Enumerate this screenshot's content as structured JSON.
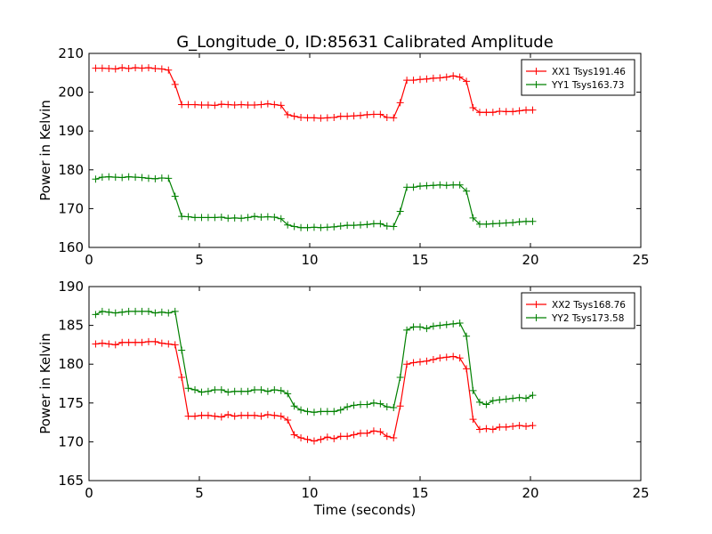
{
  "title": "G_Longitude_0, ID:85631 Calibrated Amplitude",
  "colors": {
    "red": "#ff0000",
    "green": "#008000"
  },
  "chart_data": [
    {
      "type": "line",
      "title": "G_Longitude_0, ID:85631 Calibrated Amplitude",
      "xlabel": "",
      "ylabel": "Power in Kelvin",
      "xlim": [
        0,
        25
      ],
      "ylim": [
        160,
        210
      ],
      "xticks": [
        "0",
        "5",
        "10",
        "15",
        "20",
        "25"
      ],
      "yticks": [
        "160",
        "170",
        "180",
        "190",
        "200",
        "210"
      ],
      "grid": false,
      "legend": "top-right",
      "marker": "+",
      "x": [
        0.3,
        0.6,
        0.9,
        1.2,
        1.5,
        1.8,
        2.1,
        2.4,
        2.7,
        3.0,
        3.3,
        3.6,
        3.9,
        4.2,
        4.5,
        4.8,
        5.1,
        5.4,
        5.7,
        6.0,
        6.3,
        6.6,
        6.9,
        7.2,
        7.5,
        7.8,
        8.1,
        8.4,
        8.7,
        9.0,
        9.3,
        9.6,
        9.9,
        10.2,
        10.5,
        10.8,
        11.1,
        11.4,
        11.7,
        12.0,
        12.3,
        12.6,
        12.9,
        13.2,
        13.5,
        13.8,
        14.1,
        14.4,
        14.7,
        15.0,
        15.3,
        15.6,
        15.9,
        16.2,
        16.5,
        16.8,
        17.1,
        17.4,
        17.7,
        18.0,
        18.3,
        18.6,
        18.9,
        19.2,
        19.5,
        19.8,
        20.1
      ],
      "series": [
        {
          "name": "XX1 Tsys191.46",
          "color": "#ff0000",
          "values": [
            206.2,
            206.2,
            206.1,
            206.0,
            206.3,
            206.1,
            206.3,
            206.2,
            206.3,
            206.1,
            206.0,
            205.7,
            202.0,
            196.8,
            196.8,
            196.8,
            196.7,
            196.7,
            196.6,
            196.9,
            196.8,
            196.7,
            196.8,
            196.7,
            196.7,
            196.8,
            197.0,
            196.8,
            196.6,
            194.2,
            193.8,
            193.5,
            193.4,
            193.4,
            193.3,
            193.4,
            193.5,
            193.8,
            193.8,
            193.9,
            194.0,
            194.2,
            194.3,
            194.3,
            193.5,
            193.4,
            197.3,
            203.1,
            203.1,
            203.3,
            203.4,
            203.6,
            203.7,
            203.9,
            204.2,
            203.9,
            202.8,
            196.0,
            194.8,
            194.8,
            194.8,
            195.1,
            195.0,
            195.0,
            195.2,
            195.4,
            195.4
          ]
        },
        {
          "name": "YY1 Tsys163.73",
          "color": "#008000",
          "values": [
            177.6,
            178.1,
            178.2,
            178.1,
            178.0,
            178.2,
            178.1,
            178.0,
            177.8,
            177.7,
            177.9,
            177.8,
            173.2,
            168.0,
            167.9,
            167.7,
            167.7,
            167.7,
            167.7,
            167.8,
            167.5,
            167.6,
            167.5,
            167.7,
            168.0,
            167.8,
            167.9,
            167.8,
            167.4,
            165.8,
            165.4,
            165.1,
            165.1,
            165.2,
            165.1,
            165.2,
            165.3,
            165.5,
            165.7,
            165.7,
            165.8,
            165.9,
            166.1,
            166.1,
            165.5,
            165.4,
            169.3,
            175.5,
            175.5,
            175.8,
            175.9,
            176.0,
            176.1,
            176.0,
            176.1,
            176.1,
            174.5,
            167.6,
            166.0,
            166.0,
            166.1,
            166.2,
            166.3,
            166.4,
            166.6,
            166.7,
            166.7
          ]
        }
      ]
    },
    {
      "type": "line",
      "title": "",
      "xlabel": "Time (seconds)",
      "ylabel": "Power in Kelvin",
      "xlim": [
        0,
        25
      ],
      "ylim": [
        165,
        190
      ],
      "xticks": [
        "0",
        "5",
        "10",
        "15",
        "20",
        "25"
      ],
      "yticks": [
        "165",
        "170",
        "175",
        "180",
        "185",
        "190"
      ],
      "grid": false,
      "legend": "top-right",
      "marker": "+",
      "x": [
        0.3,
        0.6,
        0.9,
        1.2,
        1.5,
        1.8,
        2.1,
        2.4,
        2.7,
        3.0,
        3.3,
        3.6,
        3.9,
        4.2,
        4.5,
        4.8,
        5.1,
        5.4,
        5.7,
        6.0,
        6.3,
        6.6,
        6.9,
        7.2,
        7.5,
        7.8,
        8.1,
        8.4,
        8.7,
        9.0,
        9.3,
        9.6,
        9.9,
        10.2,
        10.5,
        10.8,
        11.1,
        11.4,
        11.7,
        12.0,
        12.3,
        12.6,
        12.9,
        13.2,
        13.5,
        13.8,
        14.1,
        14.4,
        14.7,
        15.0,
        15.3,
        15.6,
        15.9,
        16.2,
        16.5,
        16.8,
        17.1,
        17.4,
        17.7,
        18.0,
        18.3,
        18.6,
        18.9,
        19.2,
        19.5,
        19.8,
        20.1
      ],
      "series": [
        {
          "name": "XX2 Tsys168.76",
          "color": "#ff0000",
          "values": [
            182.6,
            182.7,
            182.6,
            182.5,
            182.8,
            182.8,
            182.8,
            182.8,
            182.9,
            182.9,
            182.7,
            182.6,
            182.5,
            178.3,
            173.3,
            173.3,
            173.4,
            173.4,
            173.3,
            173.2,
            173.5,
            173.3,
            173.4,
            173.4,
            173.4,
            173.3,
            173.5,
            173.4,
            173.3,
            172.8,
            170.9,
            170.5,
            170.3,
            170.1,
            170.3,
            170.6,
            170.4,
            170.7,
            170.7,
            170.9,
            171.1,
            171.1,
            171.4,
            171.3,
            170.7,
            170.5,
            174.6,
            180.0,
            180.2,
            180.3,
            180.4,
            180.6,
            180.8,
            180.9,
            181.0,
            180.8,
            179.4,
            172.9,
            171.6,
            171.7,
            171.6,
            171.9,
            171.9,
            172.0,
            172.1,
            172.0,
            172.1
          ]
        },
        {
          "name": "YY2 Tsys173.58",
          "color": "#008000",
          "values": [
            186.4,
            186.8,
            186.7,
            186.6,
            186.7,
            186.8,
            186.8,
            186.8,
            186.8,
            186.6,
            186.7,
            186.6,
            186.8,
            181.8,
            176.9,
            176.7,
            176.4,
            176.5,
            176.7,
            176.7,
            176.4,
            176.5,
            176.5,
            176.5,
            176.7,
            176.7,
            176.5,
            176.7,
            176.6,
            176.2,
            174.6,
            174.1,
            173.9,
            173.8,
            173.9,
            173.9,
            173.9,
            174.1,
            174.5,
            174.7,
            174.8,
            174.8,
            175.0,
            174.9,
            174.5,
            174.4,
            178.3,
            184.4,
            184.8,
            184.8,
            184.6,
            184.9,
            185.0,
            185.1,
            185.2,
            185.3,
            183.6,
            176.6,
            175.1,
            174.8,
            175.3,
            175.4,
            175.5,
            175.6,
            175.7,
            175.6,
            176.0
          ]
        }
      ]
    }
  ]
}
